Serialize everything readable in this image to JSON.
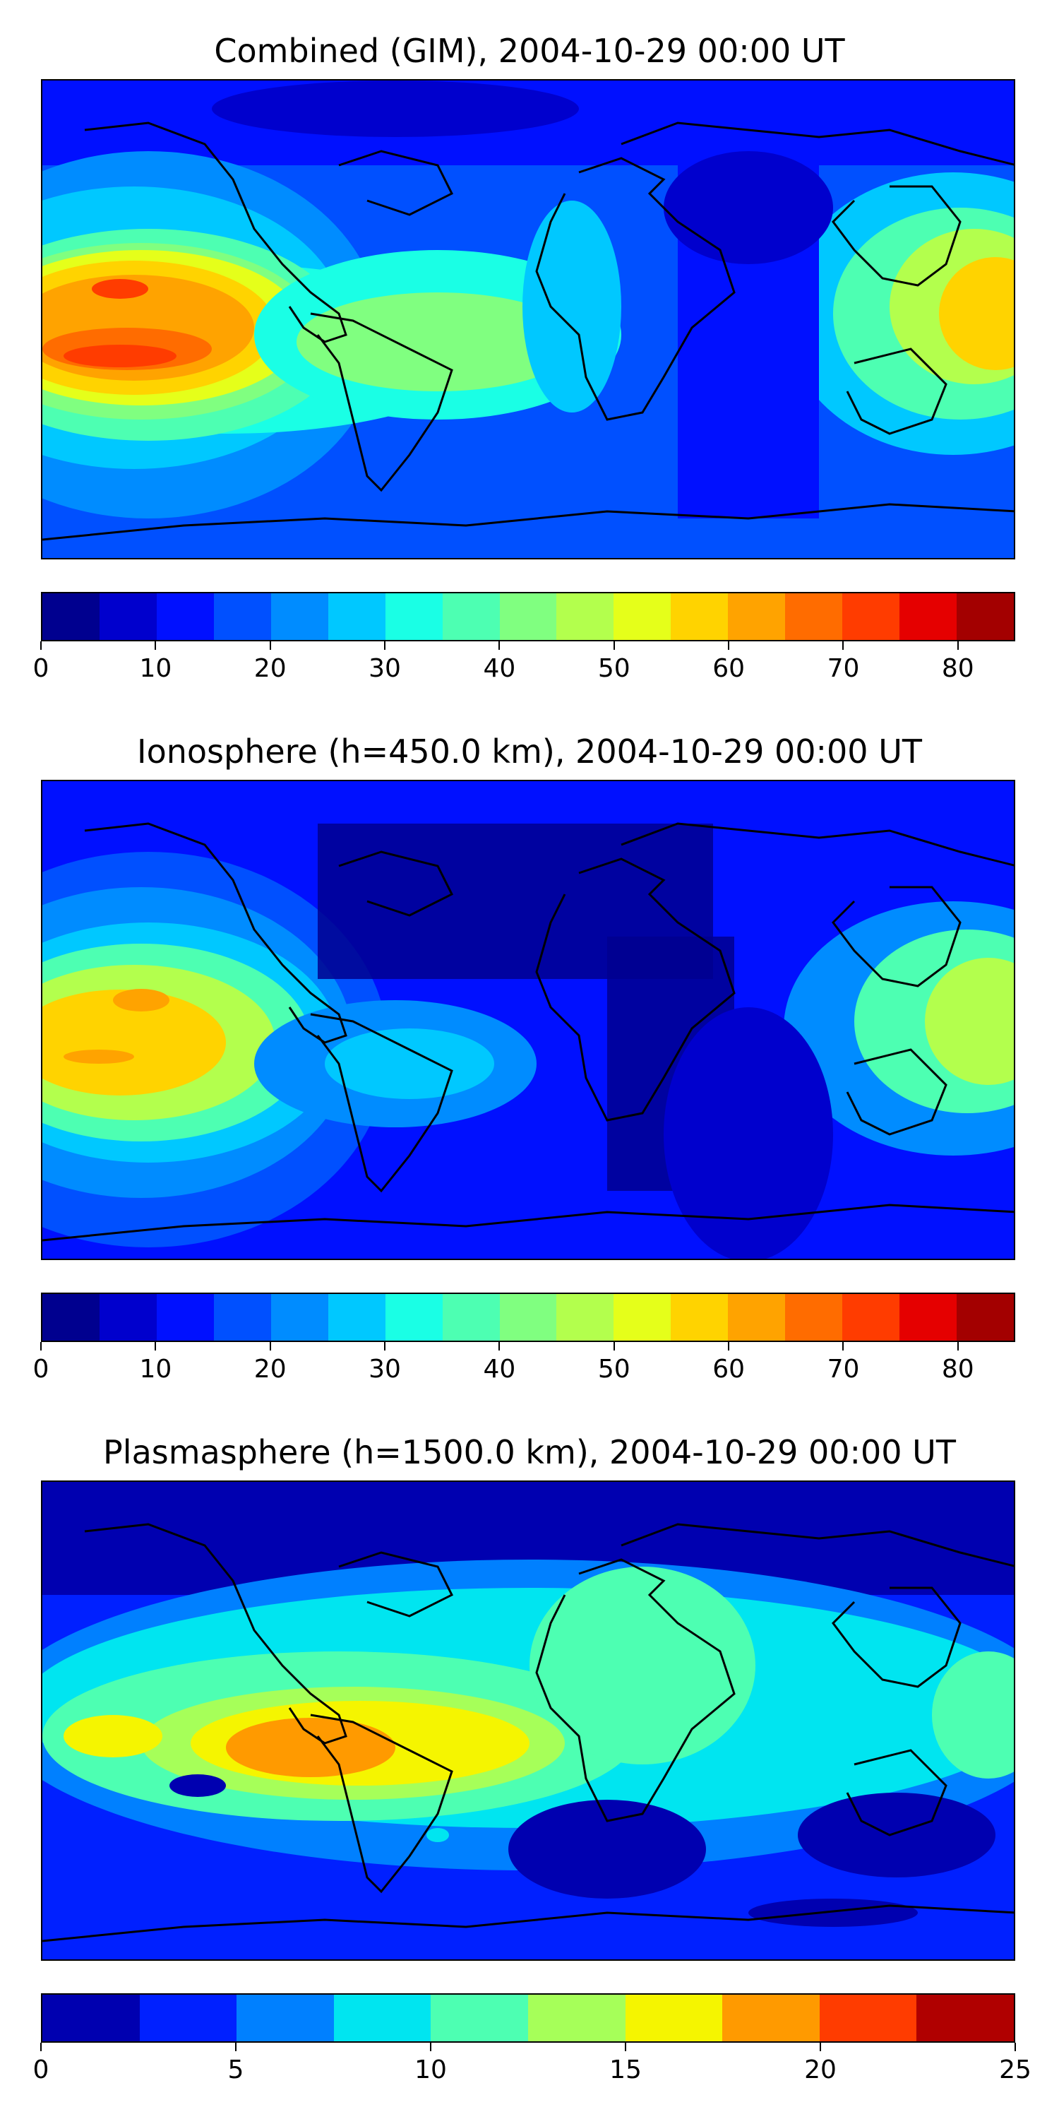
{
  "panels": [
    {
      "title": "Combined (GIM), 2004-10-29 00:00 UT",
      "colorbar": {
        "levels_min": 0,
        "levels_max": 85,
        "step": 5,
        "ticks": [
          0,
          10,
          20,
          30,
          40,
          50,
          60,
          70,
          80
        ],
        "colors": [
          "#00008f",
          "#0000cd",
          "#0010ff",
          "#0050ff",
          "#008cff",
          "#00c8ff",
          "#1affe5",
          "#4dffb2",
          "#80ff80",
          "#b3ff4d",
          "#e5ff1a",
          "#ffd300",
          "#ffa300",
          "#ff6c00",
          "#ff3c00",
          "#e50000",
          "#a30000"
        ]
      }
    },
    {
      "title": "Ionosphere  (h=450.0 km), 2004-10-29 00:00 UT",
      "colorbar": {
        "levels_min": 0,
        "levels_max": 85,
        "step": 5,
        "ticks": [
          0,
          10,
          20,
          30,
          40,
          50,
          60,
          70,
          80
        ],
        "colors": [
          "#00008f",
          "#0000cd",
          "#0010ff",
          "#0050ff",
          "#008cff",
          "#00c8ff",
          "#1affe5",
          "#4dffb2",
          "#80ff80",
          "#b3ff4d",
          "#e5ff1a",
          "#ffd300",
          "#ffa300",
          "#ff6c00",
          "#ff3c00",
          "#e50000",
          "#a30000"
        ]
      }
    },
    {
      "title": "Plasmasphere (h=1500.0 km), 2004-10-29 00:00 UT",
      "colorbar": {
        "levels_min": 0,
        "levels_max": 25,
        "step": 2.5,
        "ticks": [
          0,
          5,
          10,
          15,
          20,
          25
        ],
        "colors": [
          "#0000b0",
          "#0020ff",
          "#0080ff",
          "#00e5f0",
          "#4dffb2",
          "#a6ff59",
          "#f5f500",
          "#ff9a00",
          "#ff3c00",
          "#b00000"
        ]
      }
    }
  ]
}
